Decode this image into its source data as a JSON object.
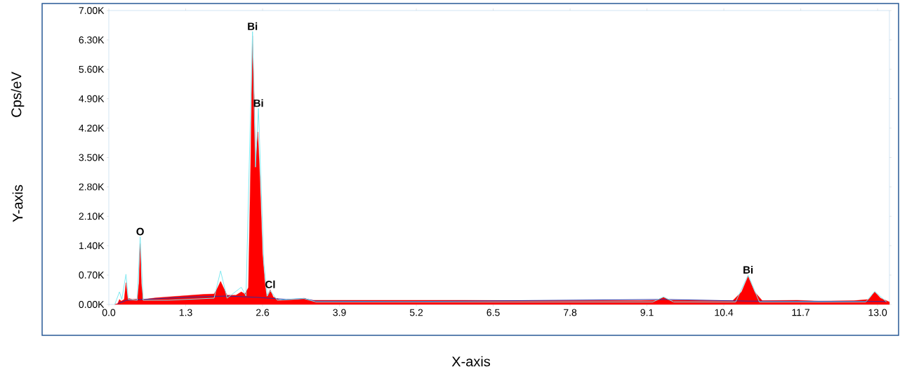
{
  "chart_data": {
    "type": "area",
    "xlabel": "X-axis",
    "ylabel": "Cps/eV",
    "annotations": [
      "Y-axis",
      {
        "text": "O",
        "x": 0.53,
        "y": 1.61
      },
      {
        "text": "Bi",
        "x": 2.43,
        "y": 6.5
      },
      {
        "text": "Bi",
        "x": 2.53,
        "y": 4.67
      },
      {
        "text": "Cl",
        "x": 2.73,
        "y": 0.35
      },
      {
        "text": "Bi",
        "x": 10.81,
        "y": 0.7
      }
    ],
    "xlim": [
      0,
      13.2
    ],
    "ylim": [
      0,
      7
    ],
    "xticks": [
      {
        "value": 0,
        "label": "0.0"
      },
      1.3,
      2.6,
      3.9,
      5.2,
      6.5,
      7.8,
      9.1,
      10.4,
      11.7,
      {
        "value": 13,
        "label": "13.0"
      }
    ],
    "yticks": [
      {
        "value": 0,
        "label": "0.00K"
      },
      {
        "value": 0.7,
        "label": "0.70K"
      },
      {
        "value": 1.4,
        "label": "1.40K"
      },
      {
        "value": 2.1,
        "label": "2.10K"
      },
      {
        "value": 2.8,
        "label": "2.80K"
      },
      {
        "value": 3.5,
        "label": "3.50K"
      },
      {
        "value": 4.2,
        "label": "4.20K"
      },
      {
        "value": 4.9,
        "label": "4.90K"
      },
      {
        "value": 5.6,
        "label": "5.60K"
      },
      {
        "value": 6.3,
        "label": "6.30K"
      },
      {
        "value": 7,
        "label": "7.00K"
      }
    ],
    "series": [
      {
        "color": "#ff0000",
        "x": [
          0.1,
          0.15,
          0.18,
          0.21,
          0.26,
          0.29,
          0.32,
          0.4,
          0.48,
          0.51,
          0.53,
          0.55,
          0.58,
          0.7,
          0.8,
          1.0,
          1.2,
          1.4,
          1.6,
          1.78,
          1.84,
          1.89,
          1.94,
          2.0,
          2.15,
          2.24,
          2.3,
          2.36,
          2.4,
          2.43,
          2.46,
          2.48,
          2.5,
          2.52,
          2.55,
          2.6,
          2.64,
          2.67,
          2.73,
          2.78,
          2.9,
          3.2,
          3.3,
          3.4,
          4.0,
          5.0,
          6.0,
          7.0,
          8.0,
          9.0,
          9.25,
          9.38,
          9.5,
          10.55,
          10.7,
          10.81,
          10.92,
          11.05,
          11.64,
          12.0,
          12.6,
          12.85,
          12.95,
          13.05,
          13.2
        ],
        "values": [
          0,
          0.02,
          0.12,
          0.08,
          0.12,
          0.52,
          0.15,
          0.12,
          0.13,
          0.5,
          1.45,
          0.5,
          0.12,
          0.14,
          0.16,
          0.18,
          0.2,
          0.22,
          0.24,
          0.25,
          0.4,
          0.55,
          0.4,
          0.22,
          0.22,
          0.3,
          0.25,
          0.4,
          3.5,
          6.4,
          4.9,
          3.38,
          3.8,
          4.11,
          3.2,
          1.2,
          0.5,
          0.18,
          0.35,
          0.18,
          0.1,
          0.12,
          0.15,
          0.1,
          0.1,
          0.1,
          0.1,
          0.09,
          0.09,
          0.09,
          0.1,
          0.17,
          0.1,
          0.09,
          0.3,
          0.67,
          0.3,
          0.09,
          0.1,
          0.08,
          0.09,
          0.12,
          0.3,
          0.15,
          0.06
        ]
      },
      {
        "type": "line",
        "color": "#3030a0",
        "x": [
          0.15,
          0.3,
          0.6,
          1.0,
          1.5,
          2.0,
          2.5,
          3.0,
          3.3,
          3.5,
          5.0,
          9.38,
          10.81,
          13.15
        ],
        "values": [
          0.02,
          0.1,
          0.12,
          0.15,
          0.18,
          0.2,
          0.17,
          0.12,
          0.14,
          0.08,
          0.07,
          0.12,
          0.08,
          0.07
        ]
      },
      {
        "type": "line",
        "color": "#80e8f0",
        "x": [
          0.1,
          0.18,
          0.22,
          0.29,
          0.33,
          0.48,
          0.53,
          0.58,
          1.0,
          1.78,
          1.89,
          2.0,
          2.24,
          2.32,
          2.43,
          2.48,
          2.53,
          2.62,
          2.68,
          2.73,
          2.85,
          3.3,
          3.5,
          9.2,
          9.38,
          9.55,
          10.6,
          10.81,
          11.0,
          12.8,
          12.95,
          13.15
        ],
        "values": [
          0,
          0.3,
          0.12,
          0.72,
          0.12,
          0.1,
          1.61,
          0.1,
          0.1,
          0.15,
          0.8,
          0.15,
          0.41,
          0.2,
          6.5,
          3.27,
          4.67,
          1.0,
          0.2,
          0.33,
          0.1,
          0.14,
          0.06,
          0.06,
          0.18,
          0.06,
          0.06,
          0.7,
          0.06,
          0.06,
          0.31,
          0.06
        ]
      }
    ]
  }
}
